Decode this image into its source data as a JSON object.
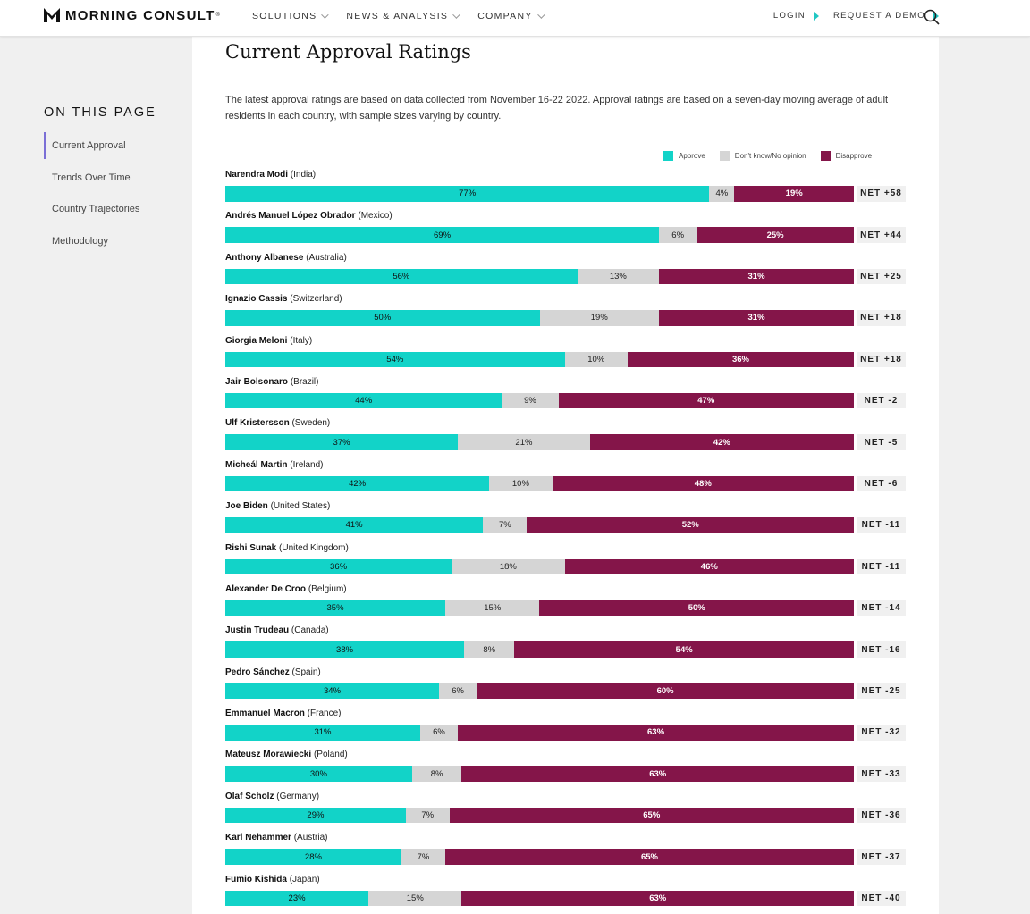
{
  "nav": {
    "logo_text": "MORNING CONSULT",
    "logo_reg": "®",
    "menu": [
      {
        "label": "SOLUTIONS"
      },
      {
        "label": "NEWS & ANALYSIS"
      },
      {
        "label": "COMPANY"
      }
    ],
    "login": "LOGIN",
    "demo": "REQUEST A DEMO"
  },
  "sidebar": {
    "title": "ON THIS PAGE",
    "items": [
      {
        "label": "Current Approval"
      },
      {
        "label": "Trends Over Time"
      },
      {
        "label": "Country Trajectories"
      },
      {
        "label": "Methodology"
      }
    ]
  },
  "page": {
    "title": "Current Approval Ratings",
    "intro": "The latest approval ratings are based on data collected from November 16-22 2022. Approval ratings are based on a seven-day moving average of adult residents in each country, with sample sizes varying by country."
  },
  "legend": {
    "approve": "Approve",
    "dont_know": "Don't know/No opinion",
    "disapprove": "Disapprove"
  },
  "colors": {
    "approve": "#12d3c8",
    "dont_know": "#d5d5d5",
    "disapprove": "#841549",
    "accent": "#20c7c3"
  },
  "chart_data": {
    "type": "bar",
    "stacked": true,
    "horizontal": true,
    "title": "Current Approval Ratings",
    "series_names": [
      "Approve",
      "Don't know/No opinion",
      "Disapprove"
    ],
    "rows": [
      {
        "leader": "Narendra Modi",
        "country": "(India)",
        "approve": 77,
        "dont_know": 4,
        "disapprove": 19,
        "net": "NET +58"
      },
      {
        "leader": "Andrés Manuel López Obrador",
        "country": "(Mexico)",
        "approve": 69,
        "dont_know": 6,
        "disapprove": 25,
        "net": "NET +44"
      },
      {
        "leader": "Anthony Albanese",
        "country": "(Australia)",
        "approve": 56,
        "dont_know": 13,
        "disapprove": 31,
        "net": "NET +25"
      },
      {
        "leader": "Ignazio Cassis",
        "country": "(Switzerland)",
        "approve": 50,
        "dont_know": 19,
        "disapprove": 31,
        "net": "NET +18"
      },
      {
        "leader": "Giorgia Meloni",
        "country": "(Italy)",
        "approve": 54,
        "dont_know": 10,
        "disapprove": 36,
        "net": "NET +18"
      },
      {
        "leader": "Jair Bolsonaro",
        "country": "(Brazil)",
        "approve": 44,
        "dont_know": 9,
        "disapprove": 47,
        "net": "NET -2"
      },
      {
        "leader": "Ulf Kristersson",
        "country": "(Sweden)",
        "approve": 37,
        "dont_know": 21,
        "disapprove": 42,
        "net": "NET -5"
      },
      {
        "leader": "Micheál Martin",
        "country": "(Ireland)",
        "approve": 42,
        "dont_know": 10,
        "disapprove": 48,
        "net": "NET -6"
      },
      {
        "leader": "Joe Biden",
        "country": "(United States)",
        "approve": 41,
        "dont_know": 7,
        "disapprove": 52,
        "net": "NET -11"
      },
      {
        "leader": "Rishi Sunak",
        "country": "(United Kingdom)",
        "approve": 36,
        "dont_know": 18,
        "disapprove": 46,
        "net": "NET -11"
      },
      {
        "leader": "Alexander De Croo",
        "country": "(Belgium)",
        "approve": 35,
        "dont_know": 15,
        "disapprove": 50,
        "net": "NET -14"
      },
      {
        "leader": "Justin Trudeau",
        "country": "(Canada)",
        "approve": 38,
        "dont_know": 8,
        "disapprove": 54,
        "net": "NET -16"
      },
      {
        "leader": "Pedro Sánchez",
        "country": "(Spain)",
        "approve": 34,
        "dont_know": 6,
        "disapprove": 60,
        "net": "NET -25"
      },
      {
        "leader": "Emmanuel Macron",
        "country": "(France)",
        "approve": 31,
        "dont_know": 6,
        "disapprove": 63,
        "net": "NET -32"
      },
      {
        "leader": "Mateusz Morawiecki",
        "country": "(Poland)",
        "approve": 30,
        "dont_know": 8,
        "disapprove": 63,
        "net": "NET -33"
      },
      {
        "leader": "Olaf Scholz",
        "country": "(Germany)",
        "approve": 29,
        "dont_know": 7,
        "disapprove": 65,
        "net": "NET -36"
      },
      {
        "leader": "Karl Nehammer",
        "country": "(Austria)",
        "approve": 28,
        "dont_know": 7,
        "disapprove": 65,
        "net": "NET -37"
      },
      {
        "leader": "Fumio Kishida",
        "country": "(Japan)",
        "approve": 23,
        "dont_know": 15,
        "disapprove": 63,
        "net": "NET -40"
      }
    ]
  }
}
